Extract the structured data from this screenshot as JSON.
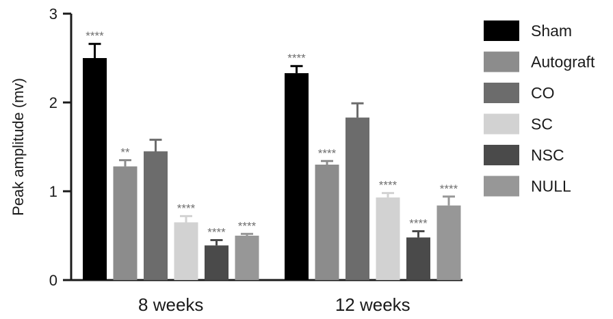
{
  "chart_data": {
    "type": "bar",
    "title": "",
    "xlabel": "",
    "ylabel": "Peak amplitude (mv)",
    "ylim": [
      0,
      3
    ],
    "yticks": [
      "0",
      "1",
      "2",
      "3"
    ],
    "categories": [
      "8 weeks",
      "12 weeks"
    ],
    "grid": false,
    "legend_position": "right",
    "series": [
      {
        "name": "Sham",
        "color": "#000000",
        "values": [
          2.5,
          2.33
        ],
        "errors": [
          0.16,
          0.08
        ],
        "significance": [
          "****",
          "****"
        ]
      },
      {
        "name": "Autograft",
        "color": "#8c8c8c",
        "values": [
          1.28,
          1.3
        ],
        "errors": [
          0.07,
          0.04
        ],
        "significance": [
          "**",
          "****"
        ]
      },
      {
        "name": "CO",
        "color": "#6c6c6c",
        "values": [
          1.45,
          1.83
        ],
        "errors": [
          0.13,
          0.16
        ],
        "significance": [
          "",
          ""
        ]
      },
      {
        "name": "SC",
        "color": "#d2d2d2",
        "values": [
          0.65,
          0.93
        ],
        "errors": [
          0.07,
          0.05
        ],
        "significance": [
          "****",
          "****"
        ]
      },
      {
        "name": "NSC",
        "color": "#4a4a4a",
        "values": [
          0.39,
          0.48
        ],
        "errors": [
          0.06,
          0.07
        ],
        "significance": [
          "****",
          "****"
        ]
      },
      {
        "name": "NULL",
        "color": "#979797",
        "values": [
          0.5,
          0.84
        ],
        "errors": [
          0.02,
          0.1
        ],
        "significance": [
          "****",
          "****"
        ]
      }
    ]
  }
}
